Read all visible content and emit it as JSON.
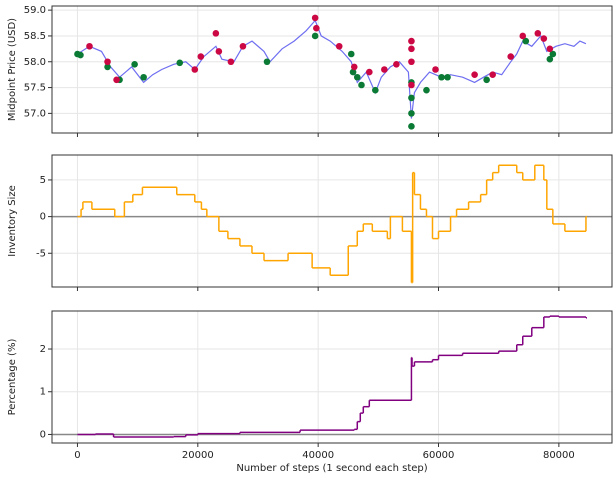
{
  "chart_data": [
    {
      "type": "line",
      "ylabel": "Midpoint Price (USD)",
      "xlim": [
        -4230,
        88830
      ],
      "xticks": [
        0,
        20000,
        40000,
        60000,
        80000
      ],
      "xtick_labels": false,
      "ylim": [
        56.62,
        59.08
      ],
      "yticks": [
        {
          "value": 57,
          "label": "57.0"
        },
        57.5,
        {
          "value": 58,
          "label": "58.0"
        },
        58.5,
        {
          "value": 59,
          "label": "59.0"
        }
      ],
      "grid": true,
      "series": [
        {
          "type": "line",
          "color": "#5555ee",
          "x": [
            0,
            2000,
            4000,
            5500,
            7000,
            9000,
            11000,
            12500,
            14000,
            16000,
            18000,
            19500,
            21000,
            23000,
            24000,
            26000,
            27500,
            29000,
            31000,
            32000,
            34000,
            36000,
            38000,
            39500,
            40500,
            42000,
            44000,
            45500,
            46500,
            48000,
            49500,
            50500,
            52000,
            53500,
            55000,
            55500,
            56000,
            57000,
            58500,
            60500,
            62000,
            64000,
            66000,
            67500,
            69000,
            70500,
            72000,
            73000,
            74000,
            75500,
            77000,
            78000,
            79500,
            81000,
            82500,
            83500,
            84500
          ],
          "values": [
            58.15,
            58.3,
            58.2,
            57.9,
            57.7,
            57.9,
            57.6,
            57.75,
            57.85,
            57.95,
            58.0,
            57.85,
            58.1,
            58.3,
            58.05,
            58.0,
            58.3,
            58.4,
            58.2,
            58.0,
            58.25,
            58.4,
            58.6,
            58.8,
            58.5,
            58.4,
            58.2,
            58.0,
            57.6,
            57.8,
            57.4,
            57.7,
            57.9,
            58.0,
            57.8,
            56.9,
            57.4,
            57.6,
            57.8,
            57.7,
            57.75,
            57.7,
            57.6,
            57.7,
            57.8,
            57.75,
            58.0,
            58.15,
            58.4,
            58.3,
            58.5,
            58.2,
            58.3,
            58.35,
            58.3,
            58.4,
            58.35
          ]
        },
        {
          "type": "scatter",
          "color": "#0a7a35",
          "x": [
            0,
            500,
            5000,
            7000,
            9500,
            11000,
            17000,
            31500,
            39500,
            45500,
            45800,
            46500,
            47200,
            49500,
            55500,
            55500,
            55500,
            55500,
            58000,
            60500,
            61500,
            68000,
            74500,
            78500,
            79000
          ],
          "values": [
            58.15,
            58.13,
            57.9,
            57.65,
            57.95,
            57.7,
            57.98,
            58.0,
            58.5,
            58.15,
            57.8,
            57.7,
            57.55,
            57.45,
            57.6,
            57.3,
            57.0,
            56.75,
            57.45,
            57.7,
            57.7,
            57.65,
            58.4,
            58.05,
            58.15
          ]
        },
        {
          "type": "scatter",
          "color": "#cc0844",
          "x": [
            2000,
            5000,
            6500,
            19500,
            20500,
            23000,
            23500,
            25500,
            27500,
            39500,
            39700,
            43500,
            46000,
            48500,
            51000,
            53000,
            55500,
            55500,
            55500,
            55500,
            59500,
            66000,
            69000,
            72000,
            74000,
            76500,
            77500,
            78500
          ],
          "values": [
            58.3,
            58.0,
            57.65,
            57.85,
            58.1,
            58.55,
            58.2,
            58.0,
            58.3,
            58.85,
            58.65,
            58.3,
            57.9,
            57.8,
            57.85,
            57.95,
            58.4,
            58.25,
            58.0,
            57.55,
            57.85,
            57.75,
            57.75,
            58.1,
            58.5,
            58.55,
            58.45,
            58.25
          ]
        }
      ]
    },
    {
      "type": "step",
      "ylabel": "Inventory Size",
      "zero_line": true,
      "xlim": [
        -4230,
        88830
      ],
      "xticks": [
        0,
        20000,
        40000,
        60000,
        80000
      ],
      "xtick_labels": false,
      "ylim": [
        -9.6,
        8.4
      ],
      "yticks": [
        -5,
        0,
        5
      ],
      "grid": true,
      "series": [
        {
          "color": "#ffa500",
          "x": [
            0,
            600,
            900,
            2400,
            6200,
            7800,
            9200,
            10800,
            16500,
            19500,
            20600,
            21500,
            23500,
            25000,
            27000,
            29000,
            31000,
            35000,
            39000,
            42000,
            45000,
            46500,
            47500,
            49000,
            51500,
            52000,
            54000,
            55500,
            55700,
            56000,
            57000,
            58000,
            59000,
            60000,
            62000,
            63000,
            65000,
            67000,
            68000,
            69000,
            70000,
            73000,
            74000,
            76000,
            77500,
            78000,
            79000,
            81000,
            84500
          ],
          "values": [
            0,
            1,
            2,
            1,
            0,
            2,
            3,
            4,
            3,
            2,
            1,
            0,
            -2,
            -3,
            -4,
            -5,
            -6,
            -5,
            -7,
            -8,
            -4,
            -2,
            -1,
            -2,
            -3,
            0,
            -2,
            -9,
            6,
            3,
            1,
            0,
            -3,
            -2,
            0,
            1,
            2,
            3,
            5,
            6,
            7,
            6,
            5,
            7,
            5,
            1,
            -1,
            -2,
            0
          ]
        }
      ]
    },
    {
      "type": "step",
      "ylabel": "Percentage (%)",
      "xlabel": "Number of steps (1 second each step)",
      "zero_line": true,
      "xlim": [
        -4230,
        88830
      ],
      "xticks": [
        0,
        20000,
        40000,
        60000,
        80000
      ],
      "xtick_labels": true,
      "ylim": [
        -0.2,
        2.89
      ],
      "yticks": [
        0,
        1,
        2
      ],
      "grid": true,
      "series": [
        {
          "color": "#800080",
          "x": [
            0,
            3000,
            6000,
            16000,
            18000,
            20000,
            27000,
            37000,
            46000,
            46500,
            47000,
            47500,
            48500,
            55500,
            55600,
            56000,
            59000,
            60000,
            64000,
            70000,
            73000,
            74000,
            75500,
            77500,
            78500,
            80000,
            84500
          ],
          "values": [
            0,
            0.01,
            -0.06,
            -0.05,
            -0.01,
            0.02,
            0.05,
            0.1,
            0.12,
            0.3,
            0.5,
            0.65,
            0.8,
            1.8,
            1.6,
            1.7,
            1.75,
            1.85,
            1.9,
            1.95,
            2.1,
            2.3,
            2.5,
            2.75,
            2.77,
            2.75,
            2.73
          ]
        }
      ]
    }
  ]
}
